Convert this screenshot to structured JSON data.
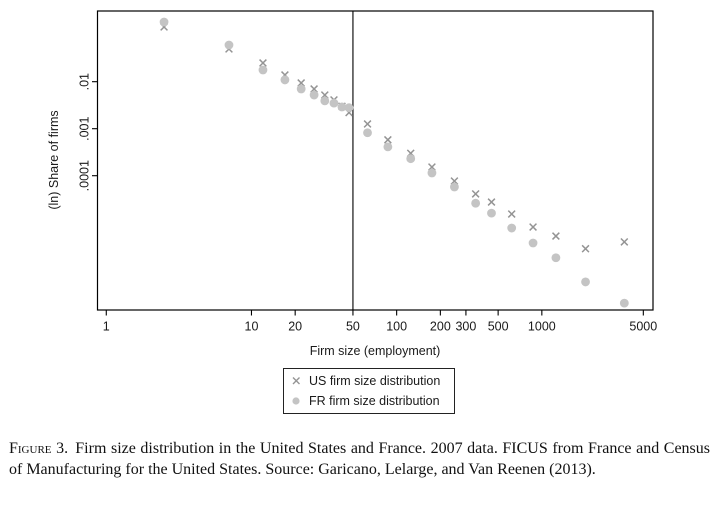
{
  "figure": {
    "caption": {
      "label": "Figure 3.",
      "text": "Firm size distribution in the United States and France. 2007 data. FICUS from France and Census of Manufacturing for the United States. Source: Garicano, Lelarge, and Van Reenen (2013)."
    }
  },
  "chart_data": {
    "type": "scatter",
    "title": "",
    "xlabel": "Firm size (employment)",
    "ylabel": "(ln) Share of firms",
    "xscale": "log",
    "yscale": "log",
    "grid": false,
    "legend_position": "bottom-center",
    "xlim": [
      0.87,
      5830
    ],
    "ylim": [
      1.39e-07,
      0.319
    ],
    "x_ticks": [
      1,
      10,
      20,
      50,
      100,
      200,
      300,
      500,
      1000,
      5000
    ],
    "x_tick_labels": [
      "1",
      "10",
      "20",
      "50",
      "100",
      "200",
      "300",
      "500",
      "1000",
      "5000"
    ],
    "y_ticks": [
      0.01,
      0.001,
      0.0001
    ],
    "y_tick_labels": [
      ".01",
      ".001",
      ".0001"
    ],
    "vline_x": 50,
    "axis_color": "#000000",
    "x": [
      2.5,
      7,
      12,
      17,
      22,
      27,
      32,
      37,
      42,
      47,
      63,
      87,
      125,
      175,
      250,
      350,
      450,
      620,
      870,
      1250,
      2000,
      3700
    ],
    "series": [
      {
        "name": "US firm size distribution",
        "marker": "x",
        "color": "#949494",
        "values": [
          0.146,
          0.0496,
          0.025,
          0.0139,
          0.0094,
          0.007,
          0.0052,
          0.0041,
          0.003,
          0.0022,
          0.00126,
          0.00058,
          0.0003,
          0.000153,
          7.7e-05,
          4.1e-05,
          2.75e-05,
          1.53e-05,
          8.1e-06,
          5.2e-06,
          2.8e-06,
          3.9e-06
        ]
      },
      {
        "name": "FR firm size distribution",
        "marker": "circle",
        "color": "#c4c4c4",
        "values": [
          0.186,
          0.0604,
          0.0177,
          0.0109,
          0.007,
          0.0052,
          0.0039,
          0.0035,
          0.0029,
          0.0028,
          0.00082,
          0.00041,
          0.00023,
          0.000114,
          5.75e-05,
          2.6e-05,
          1.6e-05,
          7.7e-06,
          3.7e-06,
          1.8e-06,
          5.5e-07,
          1.95e-07
        ]
      }
    ]
  }
}
